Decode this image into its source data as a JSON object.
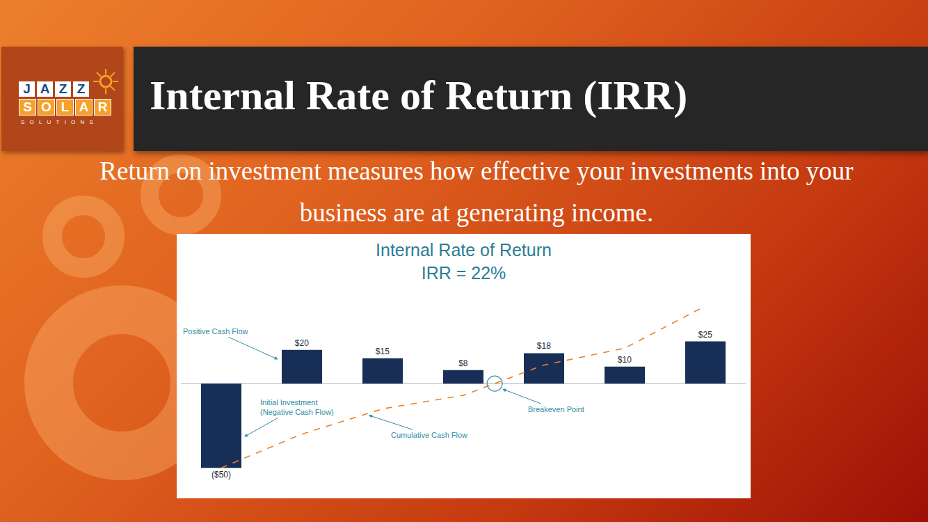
{
  "logo": {
    "lines": [
      "JAZZ",
      "SOLAR",
      "SOLUTIONS"
    ]
  },
  "header": {
    "title": "Internal Rate of Return (IRR)"
  },
  "subtitle": "Return on investment measures how effective your investments into your business are at generating income.",
  "chart_data": {
    "type": "bar",
    "title": "Internal Rate of Return",
    "subtitle": "IRR = 22%",
    "categories": [
      null,
      null,
      null,
      null,
      null,
      null,
      null
    ],
    "series": [
      {
        "type": "bar",
        "color": "#172f57",
        "values": [
          -50,
          20,
          15,
          8,
          18,
          10,
          25
        ],
        "value_labels": [
          "($50)",
          "$20",
          "$15",
          "$8",
          "$18",
          "$10",
          "$25"
        ]
      },
      {
        "type": "line",
        "color": "#f0801f",
        "line_style": "dashed",
        "marker": "none",
        "values": [
          -50,
          -30,
          -15,
          -7,
          11,
          21,
          46
        ]
      }
    ],
    "data_labels": true,
    "ylim": [
      -52,
      50
    ],
    "yticks": [],
    "tick_labels": false,
    "grid": false,
    "annotations": [
      {
        "text": [
          "Positive Cash Flow"
        ]
      },
      {
        "text": [
          "Initial Investment",
          "(Negative Cash Flow)"
        ]
      },
      {
        "text": [
          "Cumulative Cash Flow"
        ]
      },
      {
        "text": [
          "Breakeven Point"
        ]
      }
    ]
  }
}
